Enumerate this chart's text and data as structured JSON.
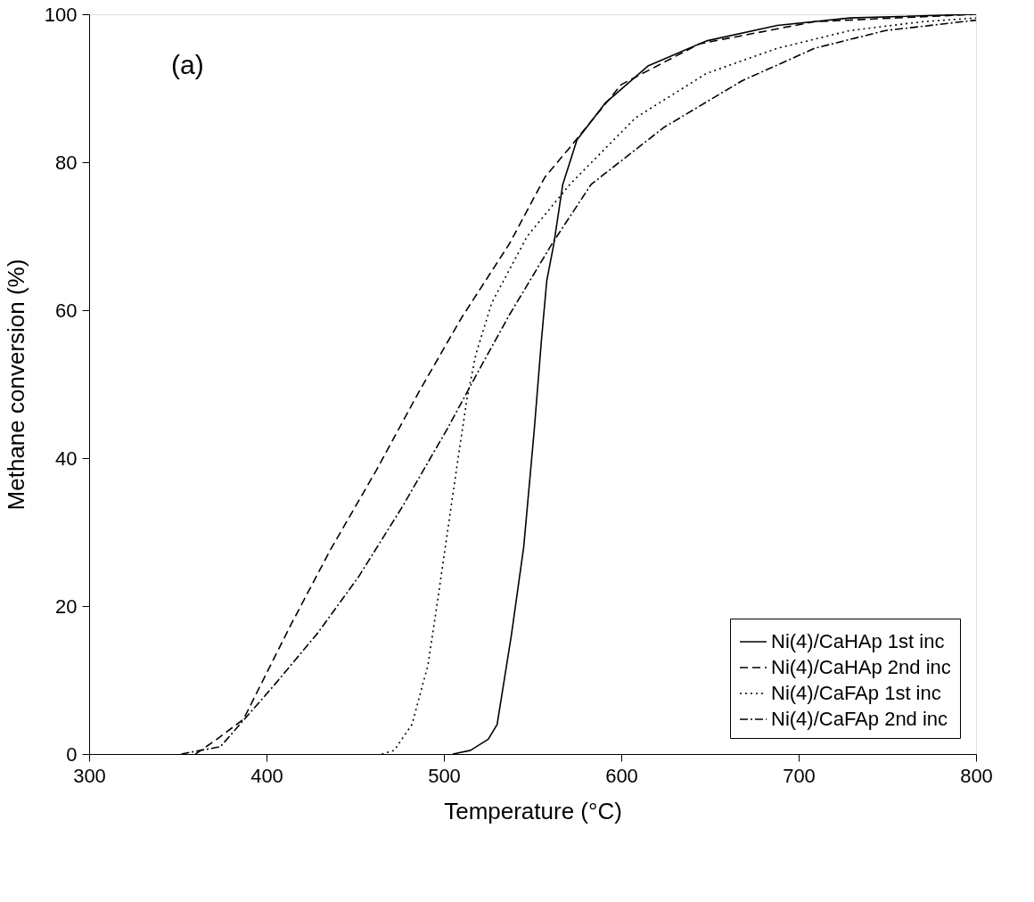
{
  "chart_data": {
    "type": "line",
    "xlabel": "Temperature (°C)",
    "ylabel": "Methane conversion (%)",
    "xlim": [
      300,
      800
    ],
    "ylim": [
      0,
      100
    ],
    "xticks": [
      300,
      400,
      500,
      600,
      700,
      800
    ],
    "yticks": [
      0,
      20,
      40,
      60,
      80,
      100
    ],
    "grid": false,
    "legend": "bottom right",
    "marker": "none",
    "annotations": [
      "(a)"
    ],
    "series": [
      {
        "name": "Ni(4)/CaHAp 1st inc",
        "color": "#000000",
        "line_style": "solid",
        "x": [
          505,
          515,
          525,
          530,
          538,
          545,
          551,
          555,
          558,
          562,
          567,
          575,
          591,
          615,
          648,
          688,
          729,
          800
        ],
        "values": [
          0,
          0.5,
          2,
          4,
          16,
          28,
          44,
          56,
          64,
          69,
          77,
          83,
          88,
          93,
          96.4,
          98.5,
          99.5,
          100
        ]
      },
      {
        "name": "Ni(4)/CaHAp 2nd inc",
        "color": "#000000",
        "line_style": "dashed",
        "x": [
          360,
          372,
          387,
          414,
          436,
          462,
          486,
          510,
          537,
          557,
          571,
          600,
          644,
          709,
          800
        ],
        "values": [
          0,
          2,
          4.7,
          17.6,
          27.6,
          38.4,
          49,
          59,
          69,
          78,
          82,
          90.5,
          96,
          99,
          100
        ]
      },
      {
        "name": "Ni(4)/CaFAp 1st inc",
        "color": "#000000",
        "line_style": "dotted",
        "x": [
          465,
          472,
          482,
          491,
          496,
          502,
          508,
          513,
          518,
          527,
          547,
          571,
          608,
          648,
          688,
          729,
          770,
          800
        ],
        "values": [
          0,
          0.5,
          4,
          12,
          20,
          30,
          40,
          48,
          54,
          61,
          70,
          77,
          86,
          92,
          95.4,
          97.8,
          99,
          99.5
        ]
      },
      {
        "name": "Ni(4)/CaFAp 2nd inc",
        "color": "#000000",
        "line_style": "dashdot",
        "x": [
          352,
          374,
          385,
          405,
          429,
          452,
          477,
          502,
          520,
          537,
          561,
          583,
          624,
          668,
          709,
          749,
          800
        ],
        "values": [
          0,
          1,
          4,
          9.5,
          16.4,
          24,
          33.6,
          44,
          52,
          59.4,
          69,
          77,
          84.7,
          91,
          95.4,
          97.8,
          99.2
        ]
      }
    ]
  }
}
